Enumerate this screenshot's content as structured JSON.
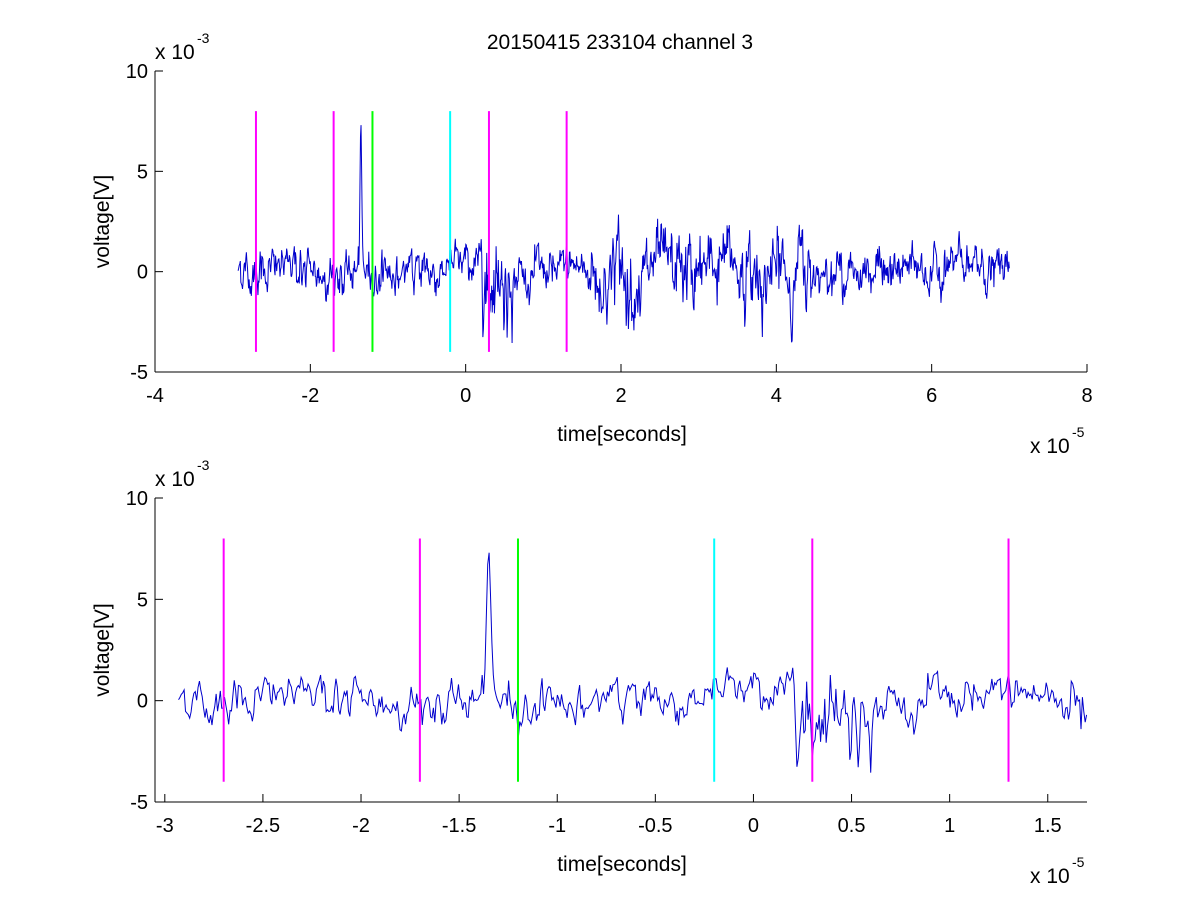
{
  "figure": {
    "title": "20150415 233104 channel 3"
  },
  "chart_data": [
    {
      "type": "line",
      "xlabel": "time[seconds]",
      "ylabel": "voltage[V]",
      "x_multiplier": "x 10",
      "x_exponent": "-5",
      "y_multiplier": "x 10",
      "y_exponent": "-3",
      "xlim": [
        -4,
        8
      ],
      "ylim": [
        -5,
        10
      ],
      "xticks": [
        "-4",
        "-2",
        "0",
        "2",
        "4",
        "6",
        "8"
      ],
      "yticks": [
        "-5",
        "0",
        "5",
        "10"
      ],
      "grid": false,
      "signal_color": "#0000CC",
      "signal_x_range": [
        -2.93,
        7.0
      ],
      "signal_approx_amplitude": 1.5,
      "signal_peak": {
        "x": -1.35,
        "y": 7.2
      },
      "markers": [
        {
          "x": -2.7,
          "ymin": -4,
          "ymax": 8,
          "color": "#FF00FF"
        },
        {
          "x": -1.7,
          "ymin": -4,
          "ymax": 8,
          "color": "#FF00FF"
        },
        {
          "x": -1.2,
          "ymin": -4,
          "ymax": 8,
          "color": "#00FF00"
        },
        {
          "x": -0.2,
          "ymin": -4,
          "ymax": 8,
          "color": "#00FFFF"
        },
        {
          "x": 0.3,
          "ymin": -4,
          "ymax": 8,
          "color": "#FF00FF"
        },
        {
          "x": 1.3,
          "ymin": -4,
          "ymax": 8,
          "color": "#FF00FF"
        }
      ]
    },
    {
      "type": "line",
      "xlabel": "time[seconds]",
      "ylabel": "voltage[V]",
      "x_multiplier": "x 10",
      "x_exponent": "-5",
      "y_multiplier": "x 10",
      "y_exponent": "-3",
      "xlim": [
        -3.05,
        1.7
      ],
      "ylim": [
        -5,
        10
      ],
      "xticks": [
        "-3",
        "-2.5",
        "-2",
        "-1.5",
        "-1",
        "-0.5",
        "0",
        "0.5",
        "1",
        "1.5"
      ],
      "yticks": [
        "-5",
        "0",
        "5",
        "10"
      ],
      "grid": false,
      "signal_color": "#0000CC",
      "signal_x_range": [
        -2.93,
        1.7
      ],
      "signal_approx_amplitude": 1.2,
      "signal_peak": {
        "x": -1.35,
        "y": 7.2
      },
      "markers": [
        {
          "x": -2.7,
          "ymin": -4,
          "ymax": 8,
          "color": "#FF00FF"
        },
        {
          "x": -1.7,
          "ymin": -4,
          "ymax": 8,
          "color": "#FF00FF"
        },
        {
          "x": -1.2,
          "ymin": -4,
          "ymax": 8,
          "color": "#00FF00"
        },
        {
          "x": -0.2,
          "ymin": -4,
          "ymax": 8,
          "color": "#00FFFF"
        },
        {
          "x": 0.3,
          "ymin": -4,
          "ymax": 8,
          "color": "#FF00FF"
        },
        {
          "x": 1.3,
          "ymin": -4,
          "ymax": 8,
          "color": "#FF00FF"
        }
      ]
    }
  ]
}
